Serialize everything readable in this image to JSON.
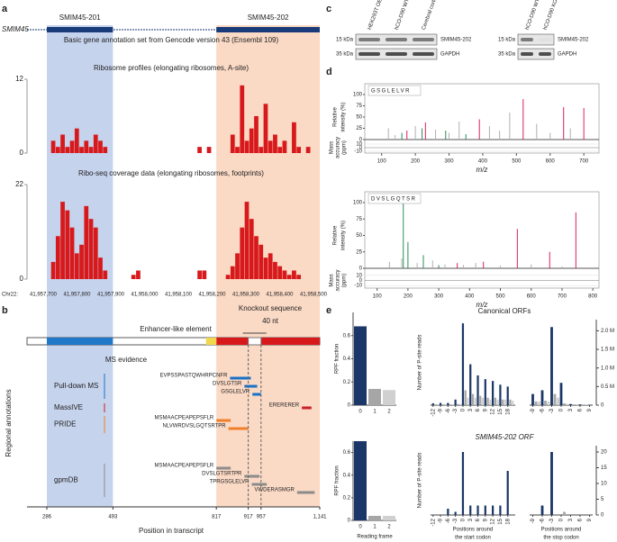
{
  "panel_a": {
    "letter": "a",
    "gene": "SMIM45",
    "annotation_title": "Basic gene annotation set from Gencode version 43 (Ensembl 109)",
    "isoforms": [
      {
        "name": "SMIM45-201",
        "start": 286,
        "end": 493,
        "color": "#bccbea"
      },
      {
        "name": "SMIM45-202",
        "start": 817,
        "end": 1141,
        "color": "#f9d2bb"
      }
    ],
    "bar_color": "#d7191c",
    "ribo_title": "Ribosome profiles (elongating ribosomes, A-site)",
    "ribo_ylim": [
      0,
      12
    ],
    "ribo_yticks": [
      0,
      12
    ],
    "ribo_values": [
      0,
      0,
      0,
      0,
      0,
      2,
      1,
      3,
      1,
      2,
      4,
      1,
      2,
      1,
      3,
      2,
      1,
      0,
      0,
      0,
      0,
      0,
      0,
      0,
      0,
      0,
      0,
      0,
      0,
      0,
      0,
      0,
      0,
      0,
      0,
      0,
      1,
      0,
      1,
      0,
      0,
      0,
      0,
      3,
      1,
      11,
      2,
      4,
      6,
      1,
      8,
      2,
      3,
      1,
      2,
      0,
      5,
      1,
      0,
      1,
      0,
      0
    ],
    "coverage_title": "Ribo-seq coverage data (elongating ribosomes, footprints)",
    "coverage_ylim": [
      0,
      22
    ],
    "coverage_yticks": [
      0,
      22
    ],
    "coverage_values": [
      0,
      0,
      0,
      0,
      0,
      4,
      10,
      18,
      16,
      12,
      6,
      8,
      17,
      14,
      12,
      5,
      2,
      0,
      0,
      0,
      0,
      0,
      1,
      2,
      0,
      0,
      0,
      0,
      0,
      0,
      0,
      0,
      0,
      0,
      0,
      0,
      2,
      2,
      0,
      0,
      0,
      0,
      1,
      3,
      6,
      12,
      18,
      14,
      10,
      8,
      5,
      6,
      4,
      3,
      2,
      1,
      2,
      1,
      0,
      0,
      0,
      0
    ],
    "chrom": "Chr22:",
    "coords": [
      "41,957,700",
      "41,957,800",
      "41,957,900",
      "41,958,000",
      "41,958,100",
      "41,958,200",
      "41,958,300",
      "41,958,400",
      "41,958,500"
    ]
  },
  "panel_b": {
    "letter": "b",
    "side_label": "Regional annotations",
    "xlabel": "Position in transcript",
    "xlim": [
      286,
      1141
    ],
    "xticks": [
      286,
      493,
      817,
      917,
      957,
      {
        "value": 1141,
        "label": "1,141"
      }
    ],
    "enhancer": {
      "label": "Enhancer-like element",
      "start": 785,
      "end": 817
    },
    "knockout": {
      "label": "Knockout sequence",
      "length": "40 nt"
    },
    "ms_title": "MS evidence",
    "ms_groups": [
      {
        "name": "Pull-down MS",
        "color": "#1a73c9",
        "peptides": [
          {
            "seq": "EVPSSPASTQWHRPCNFR",
            "start": 860,
            "end": 925
          },
          {
            "seq": "DVSLGTSR",
            "start": 905,
            "end": 945
          },
          {
            "seq": "GSGLELVR",
            "start": 930,
            "end": 957
          }
        ]
      },
      {
        "name": "MassIVE",
        "color": "#c8202a",
        "peptides": [
          {
            "seq": "ERERERER",
            "start": 1085,
            "end": 1115
          }
        ]
      },
      {
        "name": "PRIDE",
        "color": "#f07f2a",
        "peptides": [
          {
            "seq": "MSMAACPEAPEPSFLR",
            "start": 817,
            "end": 862
          },
          {
            "seq": "NLVWRDVSLGQTSRTPR",
            "start": 855,
            "end": 917
          }
        ]
      },
      {
        "name": "gpmDB",
        "color": "#8c8c8c",
        "peptides": [
          {
            "seq": "MSMAACPEAPEPSFLR",
            "start": 817,
            "end": 862
          },
          {
            "seq": "DVSLGTSRTPR",
            "start": 905,
            "end": 952
          },
          {
            "seq": "TPRGSGLELVR",
            "start": 928,
            "end": 975
          },
          {
            "seq": "VWDERASMGR",
            "start": 1070,
            "end": 1125
          }
        ]
      }
    ]
  },
  "panel_c": {
    "letter": "c",
    "blots": [
      {
        "lanes": [
          "HEK293T OE",
          "hCO-D90 WT",
          "Cerebral cortex"
        ],
        "markers": [
          "15 kDa",
          "35 kDa"
        ],
        "bands": [
          "SMIM45-202",
          "GAPDH"
        ]
      },
      {
        "lanes": [
          "hCO-D90 WT",
          "hCO-D90 KO"
        ],
        "markers": [
          "15 kDa",
          "35 kDa"
        ],
        "bands": [
          "SMIM45-202",
          "GAPDH"
        ]
      }
    ]
  },
  "panel_d": {
    "letter": "d",
    "intensity_label": [
      "Relative",
      "intensity (%)"
    ],
    "accuracy_label": [
      "Mass",
      "accuracy",
      "(ppm)"
    ],
    "xlabel": "m/z",
    "spectra": [
      {
        "peptide": "GSGLELVR",
        "xlim": [
          50,
          745
        ],
        "xticks": [
          100,
          200,
          300,
          400,
          500,
          600,
          700
        ],
        "ylim": [
          0,
          100
        ],
        "yticks": [
          0,
          25,
          50,
          75,
          100
        ],
        "acc_ylim": [
          -15,
          15
        ],
        "acc_yticks": [
          10,
          0,
          -10
        ],
        "other": {
          "color": "#b0b0b0",
          "x": [
            120,
            140,
            200,
            260,
            300,
            330,
            420,
            450,
            480,
            560,
            600,
            660
          ],
          "values": [
            25,
            10,
            30,
            22,
            15,
            40,
            30,
            20,
            60,
            35,
            15,
            25
          ]
        },
        "b_ions": {
          "color": "#2e8b57",
          "x": [
            160,
            220,
            290,
            350
          ],
          "values": [
            15,
            25,
            20,
            12
          ]
        },
        "y_ions": {
          "color": "#d6245a",
          "x": [
            175,
            230,
            390,
            520,
            640,
            700
          ],
          "values": [
            20,
            38,
            45,
            90,
            72,
            70
          ]
        }
      },
      {
        "peptide": "DVSLGQTSR",
        "xlim": [
          60,
          820
        ],
        "xticks": [
          100,
          200,
          300,
          400,
          500,
          600,
          700,
          800
        ],
        "ylim": [
          0,
          100
        ],
        "yticks": [
          0,
          25,
          50,
          75,
          100
        ],
        "acc_ylim": [
          -15,
          15
        ],
        "acc_yticks": [
          10,
          0,
          -10
        ],
        "other": {
          "color": "#b0b0b0",
          "x": [
            140,
            180,
            230,
            280,
            320,
            380,
            420,
            500,
            600,
            700
          ],
          "values": [
            10,
            15,
            8,
            12,
            6,
            5,
            8,
            4,
            6,
            3
          ]
        },
        "b_ions": {
          "color": "#2e8b57",
          "x": [
            185,
            200,
            250,
            300
          ],
          "values": [
            100,
            40,
            20,
            5
          ]
        },
        "y_ions": {
          "color": "#d6245a",
          "x": [
            360,
            445,
            555,
            660,
            745
          ],
          "values": [
            8,
            10,
            60,
            25,
            85
          ]
        }
      }
    ]
  },
  "panel_e": {
    "letter": "e",
    "frame_colors": [
      "#1b3768",
      "#a6a6a6",
      "#d0d0d0"
    ],
    "frame_ylabel": "RPF fraction",
    "frame_xlabel": "Reading frame",
    "reads_ylabel": "Number of P-site reads",
    "start_label": [
      "Positions around",
      "the start codon"
    ],
    "stop_label": [
      "Positions around",
      "the stop codon"
    ],
    "frames": [
      {
        "categories": [
          "0",
          "1",
          "2"
        ],
        "values": [
          0.68,
          0.14,
          0.13
        ],
        "ylim": [
          0,
          0.8
        ],
        "yticks": [
          0,
          0.2,
          0.4,
          0.6
        ]
      },
      {
        "categories": [
          "0",
          "1",
          "2"
        ],
        "values": [
          0.7,
          0.04,
          0.04
        ],
        "ylim": [
          0,
          0.7
        ],
        "yticks": [
          0,
          0.2,
          0.4,
          0.6
        ]
      }
    ],
    "profiles": [
      {
        "title": "Canonical ORFs",
        "italic": false,
        "ylim": [
          0,
          2300000
        ],
        "yticks": [
          0,
          {
            "value": 500000,
            "label": "0.5 M"
          },
          {
            "value": 1000000,
            "label": "1.0 M"
          },
          {
            "value": 1500000,
            "label": "1.5 M"
          },
          {
            "value": 2000000,
            "label": "2.0 M"
          }
        ],
        "start_xlim": [
          -13,
          21
        ],
        "start_xticks": [
          -12,
          -9,
          -6,
          -3,
          0,
          3,
          6,
          9,
          12,
          15,
          18
        ],
        "start_x": [
          -12,
          -11,
          -10,
          -9,
          -8,
          -7,
          -6,
          -5,
          -4,
          -3,
          -2,
          -1,
          0,
          1,
          2,
          3,
          4,
          5,
          6,
          7,
          8,
          9,
          10,
          11,
          12,
          13,
          14,
          15,
          16,
          17,
          18,
          19,
          20
        ],
        "start_values": [
          50000,
          20000,
          20000,
          60000,
          20000,
          20000,
          60000,
          20000,
          20000,
          150000,
          30000,
          30000,
          2200000,
          400000,
          200000,
          1100000,
          300000,
          200000,
          800000,
          250000,
          200000,
          700000,
          200000,
          150000,
          650000,
          200000,
          150000,
          550000,
          150000,
          150000,
          500000,
          150000,
          120000
        ],
        "stop_xlim": [
          -10,
          10
        ],
        "stop_xticks": [
          -9,
          -6,
          -3,
          0,
          3,
          6,
          9
        ],
        "stop_x": [
          -9,
          -8,
          -7,
          -6,
          -5,
          -4,
          -3,
          -2,
          -1,
          0,
          1,
          2,
          3,
          4,
          5,
          6,
          7,
          8,
          9
        ],
        "stop_values": [
          300000,
          100000,
          100000,
          400000,
          120000,
          100000,
          2100000,
          300000,
          200000,
          600000,
          50000,
          30000,
          30000,
          20000,
          20000,
          20000,
          10000,
          10000,
          10000
        ]
      },
      {
        "title": "SMIM45-202 ORF",
        "italic": true,
        "ylim": [
          0,
          22
        ],
        "yticks": [
          0,
          5,
          10,
          15,
          20
        ],
        "start_xlim": [
          -13,
          21
        ],
        "start_xticks": [
          -12,
          -9,
          -6,
          -3,
          0,
          3,
          6,
          9,
          12,
          15,
          18
        ],
        "start_x": [
          -12,
          -11,
          -10,
          -9,
          -8,
          -7,
          -6,
          -5,
          -4,
          -3,
          -2,
          -1,
          0,
          1,
          2,
          3,
          4,
          5,
          6,
          7,
          8,
          9,
          10,
          11,
          12,
          13,
          14,
          15,
          16,
          17,
          18,
          19,
          20
        ],
        "start_values": [
          0,
          0,
          0,
          0,
          0,
          0,
          2,
          0,
          0,
          1,
          0,
          0,
          20,
          0,
          0,
          3,
          0,
          0,
          3,
          0,
          0,
          3,
          0,
          0,
          3,
          0,
          0,
          3,
          0,
          0,
          14,
          0,
          0
        ],
        "stop_xlim": [
          -10,
          10
        ],
        "stop_xticks": [
          -9,
          -6,
          -3,
          0,
          3,
          6,
          9
        ],
        "stop_x": [
          -9,
          -8,
          -7,
          -6,
          -5,
          -4,
          -3,
          -2,
          -1,
          0,
          1,
          2,
          3,
          4,
          5,
          6,
          7,
          8,
          9
        ],
        "stop_values": [
          0,
          0,
          0,
          3,
          0,
          0,
          20,
          0,
          0,
          0,
          1,
          0,
          0,
          0,
          0,
          0,
          0,
          0,
          0
        ]
      }
    ]
  }
}
